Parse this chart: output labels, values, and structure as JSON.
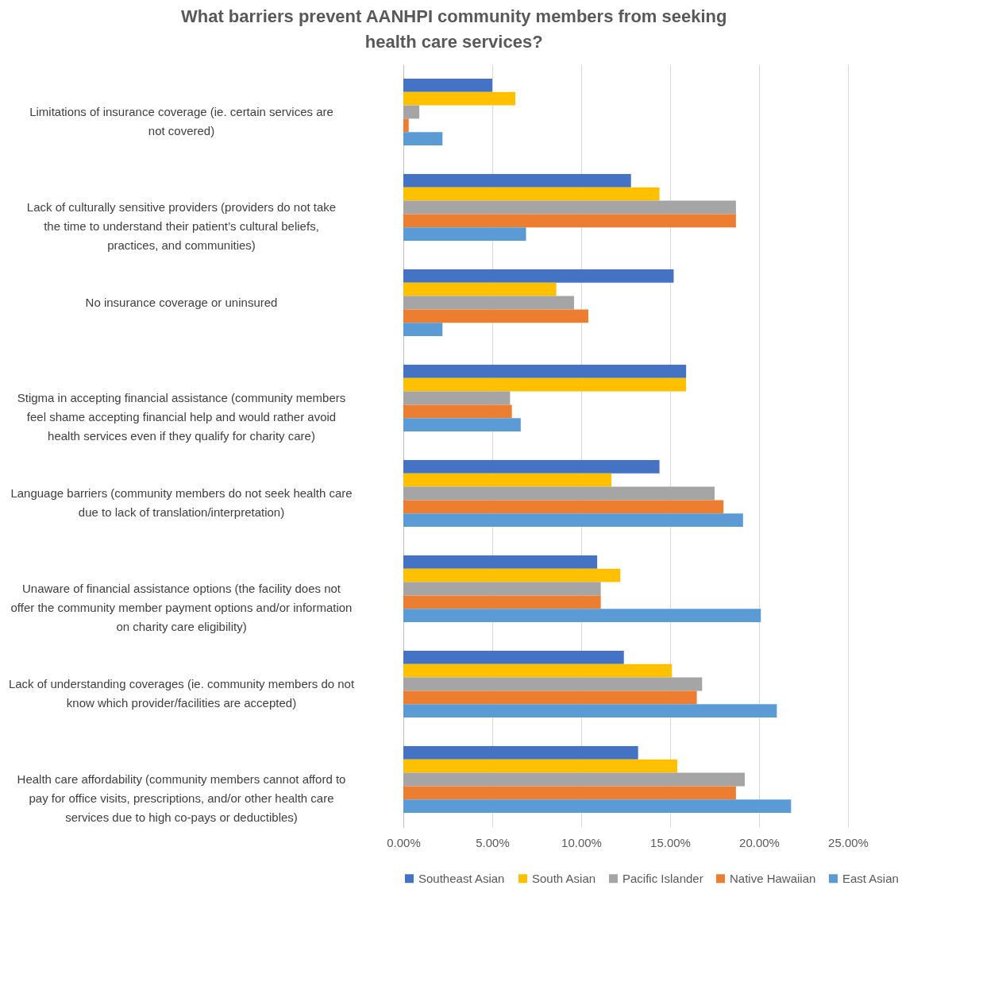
{
  "chart_data": {
    "type": "bar",
    "orientation": "horizontal",
    "title": "What barriers prevent AANHPI community members from seeking health care services?",
    "categories": [
      "Limitations of insurance coverage (ie. certain services are not covered)",
      "Lack of culturally sensitive providers (providers do not take the time to understand their patient’s cultural beliefs, practices, and communities)",
      "No insurance coverage or uninsured",
      "Stigma in accepting financial assistance (community members feel shame accepting financial help and would rather avoid health services even if they qualify for charity care)",
      "Language barriers (community members do not seek health care due to lack of translation/interpretation)",
      "Unaware of financial assistance options (the facility does not offer the community member payment options and/or information on charity care eligibility)",
      "Lack of understanding coverages (ie. community members do not know which provider/facilities are accepted)",
      "Health care affordability (community members cannot afford to pay for office visits, prescriptions, and/or other health care services due to high co-pays or deductibles)"
    ],
    "series": [
      {
        "name": "Southeast Asian",
        "color": "#4472c4",
        "values": [
          5.0,
          12.8,
          15.2,
          15.9,
          14.4,
          10.9,
          12.4,
          13.2
        ]
      },
      {
        "name": "South Asian",
        "color": "#ffc000",
        "values": [
          6.3,
          14.4,
          8.6,
          15.9,
          11.7,
          12.2,
          15.1,
          15.4
        ]
      },
      {
        "name": "Pacific Islander",
        "color": "#a5a5a5",
        "values": [
          0.9,
          18.7,
          9.6,
          6.0,
          17.5,
          11.1,
          16.8,
          19.2
        ]
      },
      {
        "name": "Native Hawaiian",
        "color": "#ed7d31",
        "values": [
          0.3,
          18.7,
          10.4,
          6.1,
          18.0,
          11.1,
          16.5,
          18.7
        ]
      },
      {
        "name": "East Asian",
        "color": "#5b9bd5",
        "values": [
          2.2,
          6.9,
          2.2,
          6.6,
          19.1,
          20.1,
          21.0,
          21.8
        ]
      }
    ],
    "xlim": [
      0,
      25
    ],
    "xticks": [
      {
        "value": 0,
        "label": "0.00%"
      },
      {
        "value": 5,
        "label": "5.00%"
      },
      {
        "value": 10,
        "label": "10.00%"
      },
      {
        "value": 15,
        "label": "15.00%"
      },
      {
        "value": 20,
        "label": "20.00%"
      },
      {
        "value": 25,
        "label": "25.00%"
      }
    ],
    "grid": "x",
    "legend": "bottom"
  }
}
